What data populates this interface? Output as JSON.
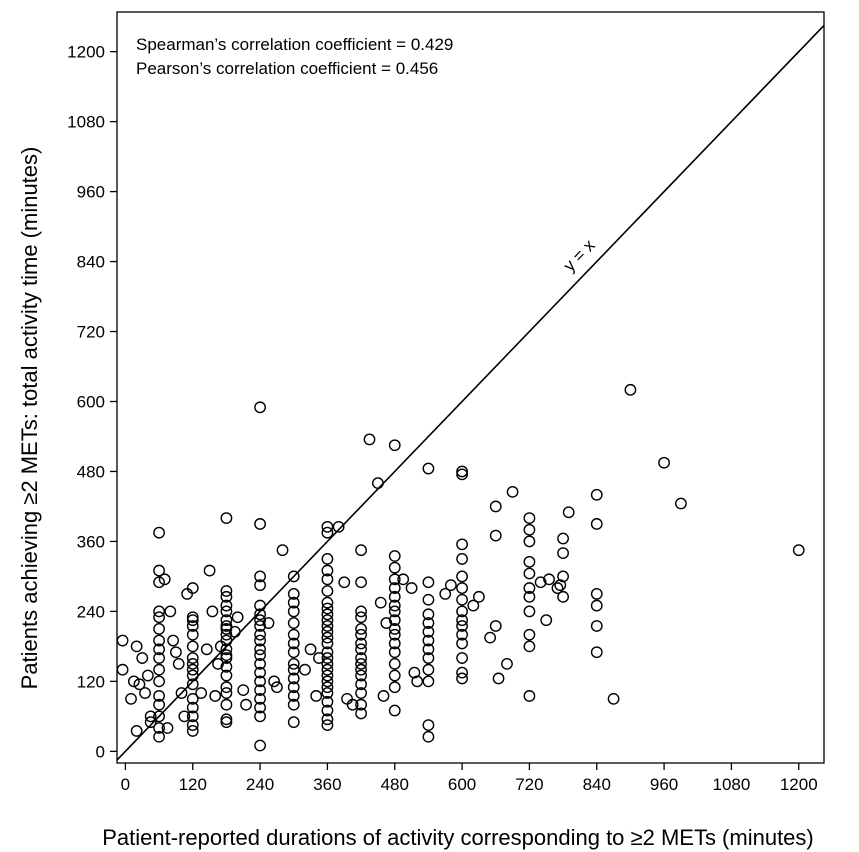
{
  "chart_data": {
    "type": "scatter",
    "xlabel": "Patient-reported durations of activity corresponding to ≥2 METs (minutes)",
    "ylabel": "Patients achieving ≥2 METs: total activity time (minutes)",
    "xlim": [
      -15,
      1245
    ],
    "ylim": [
      -20,
      1268
    ],
    "xticks": [
      0,
      120,
      240,
      360,
      480,
      600,
      720,
      840,
      960,
      1080,
      1200
    ],
    "yticks": [
      0,
      120,
      240,
      360,
      480,
      600,
      720,
      840,
      960,
      1080,
      1200
    ],
    "annotations": [
      "Spearman’s correlation coefficient = 0.429",
      "Pearson’s correlation coefficient = 0.456"
    ],
    "reference_line": {
      "label": "y = x",
      "slope": 1,
      "intercept": 0
    },
    "grid": false,
    "marker": "open-circle",
    "points": [
      [
        -5,
        190
      ],
      [
        -5,
        140
      ],
      [
        10,
        90
      ],
      [
        15,
        120
      ],
      [
        20,
        180
      ],
      [
        20,
        35
      ],
      [
        25,
        115
      ],
      [
        30,
        160
      ],
      [
        35,
        100
      ],
      [
        40,
        130
      ],
      [
        45,
        50
      ],
      [
        45,
        60
      ],
      [
        60,
        375
      ],
      [
        60,
        310
      ],
      [
        60,
        290
      ],
      [
        60,
        240
      ],
      [
        60,
        230
      ],
      [
        60,
        210
      ],
      [
        60,
        190
      ],
      [
        60,
        175
      ],
      [
        60,
        160
      ],
      [
        60,
        140
      ],
      [
        60,
        120
      ],
      [
        60,
        95
      ],
      [
        60,
        80
      ],
      [
        60,
        60
      ],
      [
        60,
        40
      ],
      [
        60,
        25
      ],
      [
        70,
        295
      ],
      [
        75,
        40
      ],
      [
        80,
        240
      ],
      [
        85,
        190
      ],
      [
        90,
        170
      ],
      [
        95,
        150
      ],
      [
        100,
        100
      ],
      [
        105,
        60
      ],
      [
        110,
        270
      ],
      [
        120,
        280
      ],
      [
        120,
        230
      ],
      [
        120,
        225
      ],
      [
        120,
        215
      ],
      [
        120,
        200
      ],
      [
        120,
        180
      ],
      [
        120,
        160
      ],
      [
        120,
        150
      ],
      [
        120,
        140
      ],
      [
        120,
        130
      ],
      [
        120,
        115
      ],
      [
        120,
        90
      ],
      [
        120,
        75
      ],
      [
        120,
        60
      ],
      [
        120,
        45
      ],
      [
        120,
        35
      ],
      [
        135,
        100
      ],
      [
        145,
        175
      ],
      [
        150,
        310
      ],
      [
        155,
        240
      ],
      [
        160,
        95
      ],
      [
        165,
        150
      ],
      [
        170,
        180
      ],
      [
        180,
        400
      ],
      [
        180,
        275
      ],
      [
        180,
        265
      ],
      [
        180,
        250
      ],
      [
        180,
        240
      ],
      [
        180,
        225
      ],
      [
        180,
        215
      ],
      [
        180,
        210
      ],
      [
        180,
        200
      ],
      [
        180,
        190
      ],
      [
        180,
        175
      ],
      [
        180,
        165
      ],
      [
        180,
        160
      ],
      [
        180,
        145
      ],
      [
        180,
        130
      ],
      [
        180,
        110
      ],
      [
        180,
        100
      ],
      [
        180,
        80
      ],
      [
        180,
        55
      ],
      [
        180,
        50
      ],
      [
        195,
        205
      ],
      [
        200,
        230
      ],
      [
        210,
        105
      ],
      [
        215,
        80
      ],
      [
        240,
        590
      ],
      [
        240,
        390
      ],
      [
        240,
        300
      ],
      [
        240,
        285
      ],
      [
        240,
        250
      ],
      [
        240,
        235
      ],
      [
        240,
        225
      ],
      [
        240,
        215
      ],
      [
        240,
        200
      ],
      [
        240,
        190
      ],
      [
        240,
        175
      ],
      [
        240,
        165
      ],
      [
        240,
        150
      ],
      [
        240,
        135
      ],
      [
        240,
        120
      ],
      [
        240,
        105
      ],
      [
        240,
        90
      ],
      [
        240,
        75
      ],
      [
        240,
        60
      ],
      [
        240,
        10
      ],
      [
        255,
        220
      ],
      [
        265,
        120
      ],
      [
        270,
        110
      ],
      [
        280,
        345
      ],
      [
        300,
        300
      ],
      [
        300,
        270
      ],
      [
        300,
        255
      ],
      [
        300,
        240
      ],
      [
        300,
        220
      ],
      [
        300,
        200
      ],
      [
        300,
        185
      ],
      [
        300,
        170
      ],
      [
        300,
        150
      ],
      [
        300,
        140
      ],
      [
        300,
        125
      ],
      [
        300,
        110
      ],
      [
        300,
        95
      ],
      [
        300,
        80
      ],
      [
        300,
        50
      ],
      [
        320,
        140
      ],
      [
        330,
        175
      ],
      [
        340,
        95
      ],
      [
        345,
        160
      ],
      [
        360,
        385
      ],
      [
        360,
        375
      ],
      [
        360,
        330
      ],
      [
        360,
        310
      ],
      [
        360,
        295
      ],
      [
        360,
        275
      ],
      [
        360,
        255
      ],
      [
        360,
        245
      ],
      [
        360,
        235
      ],
      [
        360,
        225
      ],
      [
        360,
        215
      ],
      [
        360,
        205
      ],
      [
        360,
        195
      ],
      [
        360,
        185
      ],
      [
        360,
        170
      ],
      [
        360,
        160
      ],
      [
        360,
        150
      ],
      [
        360,
        140
      ],
      [
        360,
        130
      ],
      [
        360,
        120
      ],
      [
        360,
        110
      ],
      [
        360,
        100
      ],
      [
        360,
        85
      ],
      [
        360,
        70
      ],
      [
        360,
        55
      ],
      [
        360,
        45
      ],
      [
        380,
        385
      ],
      [
        390,
        290
      ],
      [
        395,
        90
      ],
      [
        405,
        80
      ],
      [
        420,
        345
      ],
      [
        420,
        290
      ],
      [
        420,
        240
      ],
      [
        420,
        230
      ],
      [
        420,
        210
      ],
      [
        420,
        200
      ],
      [
        420,
        185
      ],
      [
        420,
        175
      ],
      [
        420,
        160
      ],
      [
        420,
        150
      ],
      [
        420,
        140
      ],
      [
        420,
        130
      ],
      [
        420,
        115
      ],
      [
        420,
        100
      ],
      [
        420,
        80
      ],
      [
        420,
        65
      ],
      [
        435,
        535
      ],
      [
        450,
        460
      ],
      [
        455,
        255
      ],
      [
        460,
        95
      ],
      [
        465,
        220
      ],
      [
        480,
        525
      ],
      [
        480,
        335
      ],
      [
        480,
        315
      ],
      [
        480,
        295
      ],
      [
        480,
        280
      ],
      [
        480,
        265
      ],
      [
        480,
        250
      ],
      [
        480,
        240
      ],
      [
        480,
        225
      ],
      [
        480,
        210
      ],
      [
        480,
        200
      ],
      [
        480,
        185
      ],
      [
        480,
        170
      ],
      [
        480,
        150
      ],
      [
        480,
        130
      ],
      [
        480,
        110
      ],
      [
        480,
        70
      ],
      [
        495,
        295
      ],
      [
        510,
        280
      ],
      [
        515,
        135
      ],
      [
        520,
        120
      ],
      [
        540,
        485
      ],
      [
        540,
        290
      ],
      [
        540,
        260
      ],
      [
        540,
        235
      ],
      [
        540,
        220
      ],
      [
        540,
        205
      ],
      [
        540,
        190
      ],
      [
        540,
        175
      ],
      [
        540,
        160
      ],
      [
        540,
        140
      ],
      [
        540,
        120
      ],
      [
        540,
        45
      ],
      [
        540,
        25
      ],
      [
        570,
        270
      ],
      [
        580,
        285
      ],
      [
        600,
        480
      ],
      [
        600,
        475
      ],
      [
        600,
        355
      ],
      [
        600,
        330
      ],
      [
        600,
        300
      ],
      [
        600,
        280
      ],
      [
        600,
        260
      ],
      [
        600,
        240
      ],
      [
        600,
        225
      ],
      [
        600,
        215
      ],
      [
        600,
        200
      ],
      [
        600,
        185
      ],
      [
        600,
        160
      ],
      [
        600,
        135
      ],
      [
        600,
        125
      ],
      [
        620,
        250
      ],
      [
        630,
        265
      ],
      [
        650,
        195
      ],
      [
        660,
        420
      ],
      [
        660,
        370
      ],
      [
        660,
        215
      ],
      [
        665,
        125
      ],
      [
        680,
        150
      ],
      [
        690,
        445
      ],
      [
        720,
        400
      ],
      [
        720,
        380
      ],
      [
        720,
        360
      ],
      [
        720,
        325
      ],
      [
        720,
        305
      ],
      [
        720,
        280
      ],
      [
        720,
        265
      ],
      [
        720,
        240
      ],
      [
        720,
        200
      ],
      [
        720,
        180
      ],
      [
        720,
        95
      ],
      [
        740,
        290
      ],
      [
        750,
        225
      ],
      [
        755,
        295
      ],
      [
        770,
        280
      ],
      [
        775,
        285
      ],
      [
        780,
        365
      ],
      [
        780,
        340
      ],
      [
        780,
        300
      ],
      [
        780,
        265
      ],
      [
        790,
        410
      ],
      [
        840,
        440
      ],
      [
        840,
        390
      ],
      [
        840,
        270
      ],
      [
        840,
        250
      ],
      [
        840,
        215
      ],
      [
        840,
        170
      ],
      [
        870,
        90
      ],
      [
        900,
        620
      ],
      [
        960,
        495
      ],
      [
        990,
        425
      ],
      [
        1200,
        345
      ]
    ]
  }
}
